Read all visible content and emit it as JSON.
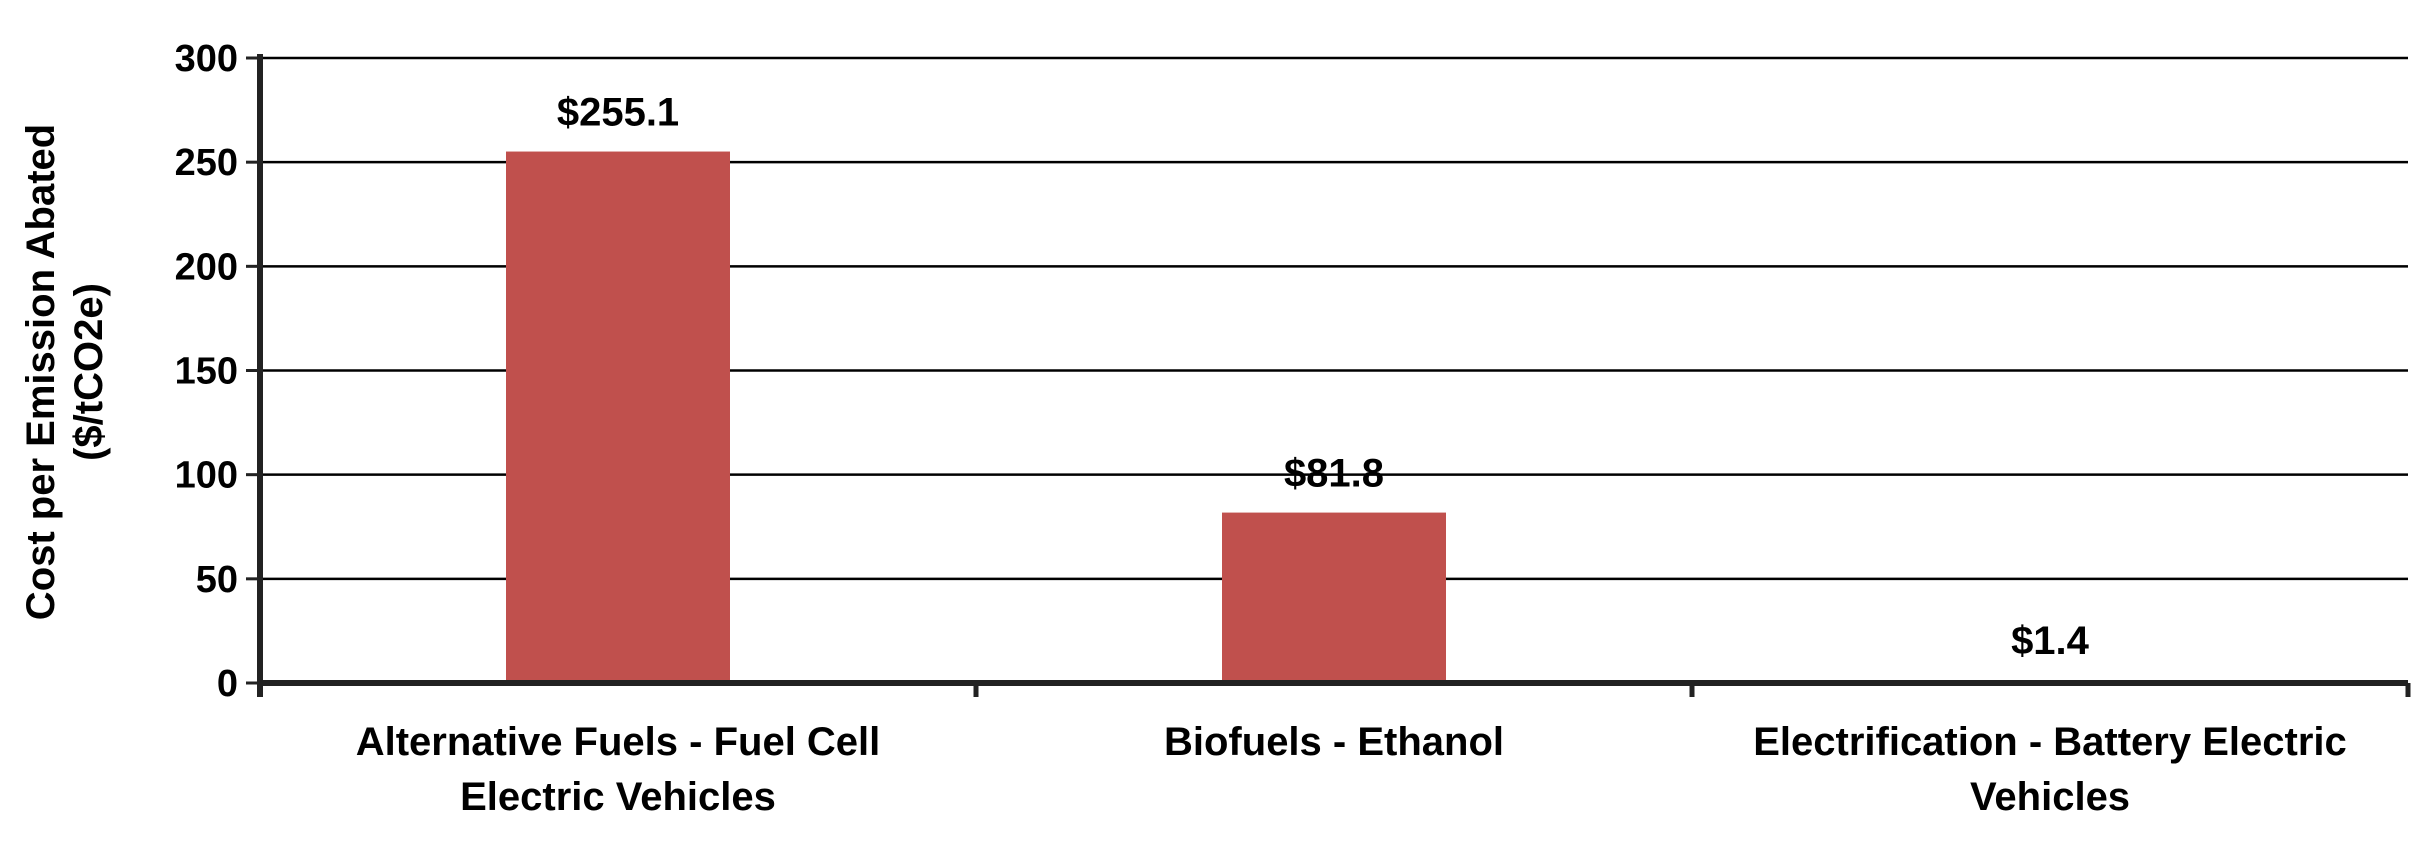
{
  "chart_data": {
    "type": "bar",
    "categories": [
      [
        "Alternative Fuels - Fuel Cell",
        "Electric Vehicles"
      ],
      [
        "Biofuels - Ethanol"
      ],
      [
        "Electrification - Battery Electric",
        "Vehicles"
      ]
    ],
    "values": [
      255.1,
      81.8,
      1.4
    ],
    "value_labels": [
      "$255.1",
      "$81.8",
      "$1.4"
    ],
    "ylabel": [
      "Cost per Emission Abated",
      "($/tCO2e)"
    ],
    "ylim": [
      0,
      300
    ],
    "yticks": [
      0,
      50,
      100,
      150,
      200,
      250,
      300
    ],
    "grid": true,
    "colors": {
      "bar": "#C0504D",
      "grid": "#000000",
      "axis": "#222222"
    }
  }
}
